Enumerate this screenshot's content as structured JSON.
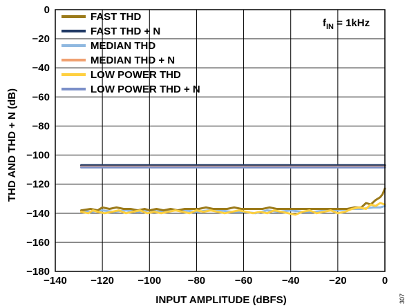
{
  "figure_id": "307",
  "chart_data": {
    "type": "line",
    "xlabel": "INPUT AMPLITUDE (dBFS)",
    "ylabel": "THD AND THD + N (dB)",
    "xlim": [
      -140,
      0
    ],
    "ylim": [
      -180,
      0
    ],
    "xticks": [
      -140,
      -120,
      -100,
      -80,
      -60,
      -40,
      -20,
      0
    ],
    "yticks": [
      0,
      -20,
      -40,
      -60,
      -80,
      -100,
      -120,
      -140,
      -160,
      -180
    ],
    "xtick_labels": [
      "−140",
      "−120",
      "−100",
      "−80",
      "−60",
      "−40",
      "−20",
      "0"
    ],
    "ytick_labels": [
      "0",
      "−20",
      "−40",
      "−60",
      "−80",
      "−100",
      "−120",
      "−140",
      "−160",
      "−180"
    ],
    "grid": true,
    "legend_position": "top-left",
    "annotation": {
      "main": "f",
      "sub": "IN",
      "rest": " = 1kHz"
    },
    "series": [
      {
        "name": "FAST THD + N",
        "color": "#1f3864",
        "z": 2,
        "x": [
          -129,
          -120,
          -110,
          -100,
          -90,
          -80,
          -70,
          -60,
          -50,
          -40,
          -30,
          -20,
          -10,
          0
        ],
        "y": [
          -107,
          -107,
          -107,
          -107,
          -107,
          -107,
          -107,
          -107,
          -107,
          -107,
          -107,
          -107,
          -107,
          -107
        ]
      },
      {
        "name": "MEDIAN THD + N",
        "color": "#f0a070",
        "z": 3,
        "x": [
          -129,
          -120,
          -110,
          -100,
          -90,
          -80,
          -70,
          -60,
          -50,
          -40,
          -30,
          -20,
          -10,
          0
        ],
        "y": [
          -108,
          -108,
          -108,
          -108,
          -108,
          -108,
          -108,
          -108,
          -108,
          -108,
          -108,
          -108,
          -108,
          -108
        ]
      },
      {
        "name": "LOW POWER THD + N",
        "color": "#7b8fc8",
        "z": 4,
        "x": [
          -129,
          -120,
          -110,
          -100,
          -90,
          -80,
          -70,
          -60,
          -50,
          -40,
          -30,
          -20,
          -10,
          0
        ],
        "y": [
          -108.5,
          -108.5,
          -108.5,
          -108.5,
          -108.5,
          -108.5,
          -108.5,
          -108.5,
          -108.5,
          -108.5,
          -108.5,
          -108.5,
          -108.5,
          -108.5
        ]
      },
      {
        "name": "MEDIAN THD",
        "color": "#8fb8e0",
        "z": 5,
        "x": [
          -129,
          -125,
          -120,
          -115,
          -110,
          -105,
          -100,
          -95,
          -90,
          -85,
          -80,
          -75,
          -70,
          -65,
          -60,
          -55,
          -50,
          -45,
          -40,
          -35,
          -30,
          -25,
          -20,
          -15,
          -10,
          -5,
          -2,
          0
        ],
        "y": [
          -138,
          -139,
          -138,
          -139,
          -138,
          -139,
          -138,
          -139,
          -138,
          -138,
          -139,
          -138,
          -138,
          -139,
          -139,
          -140,
          -138,
          -139,
          -138,
          -139,
          -139,
          -138,
          -138,
          -137,
          -137,
          -136,
          -136,
          -135
        ]
      },
      {
        "name": "FAST THD",
        "color": "#9b7a1a",
        "z": 6,
        "x": [
          -129,
          -125,
          -122,
          -120,
          -117,
          -114,
          -111,
          -108,
          -105,
          -102,
          -100,
          -97,
          -94,
          -91,
          -88,
          -85,
          -82,
          -79,
          -76,
          -73,
          -70,
          -67,
          -64,
          -61,
          -58,
          -55,
          -52,
          -49,
          -46,
          -43,
          -40,
          -37,
          -34,
          -31,
          -28,
          -25,
          -22,
          -19,
          -16,
          -13,
          -10,
          -8,
          -6,
          -4,
          -2,
          -1,
          0
        ],
        "y": [
          -138,
          -137,
          -138,
          -136,
          -137,
          -136,
          -137,
          -137,
          -138,
          -137,
          -138,
          -137,
          -138,
          -137,
          -138,
          -137,
          -137,
          -137,
          -136,
          -137,
          -137,
          -137,
          -136,
          -137,
          -137,
          -137,
          -137,
          -136,
          -137,
          -137,
          -137,
          -137,
          -137,
          -137,
          -137,
          -137,
          -137,
          -137,
          -137,
          -136,
          -136,
          -133,
          -134,
          -131,
          -129,
          -127,
          -123
        ]
      },
      {
        "name": "LOW POWER THD",
        "color": "#ffd040",
        "z": 7,
        "x": [
          -129,
          -126,
          -124,
          -122,
          -119,
          -116,
          -113,
          -110,
          -107,
          -104,
          -101,
          -98,
          -95,
          -92,
          -89,
          -86,
          -83,
          -80,
          -77,
          -74,
          -71,
          -68,
          -65,
          -62,
          -59,
          -56,
          -53,
          -50,
          -47,
          -44,
          -41,
          -38,
          -35,
          -32,
          -29,
          -26,
          -23,
          -20,
          -17,
          -14,
          -11,
          -8,
          -6,
          -4,
          -2,
          0
        ],
        "y": [
          -139,
          -140,
          -138,
          -139,
          -140,
          -139,
          -138,
          -140,
          -139,
          -138,
          -140,
          -139,
          -140,
          -139,
          -138,
          -139,
          -140,
          -138,
          -139,
          -138,
          -139,
          -140,
          -139,
          -138,
          -139,
          -140,
          -139,
          -140,
          -138,
          -139,
          -140,
          -141,
          -139,
          -138,
          -140,
          -139,
          -138,
          -140,
          -139,
          -137,
          -136,
          -137,
          -134,
          -135,
          -133,
          -134
        ]
      }
    ],
    "legend_order": [
      "FAST THD",
      "FAST THD + N",
      "MEDIAN THD",
      "MEDIAN THD + N",
      "LOW POWER THD",
      "LOW POWER THD + N"
    ]
  }
}
